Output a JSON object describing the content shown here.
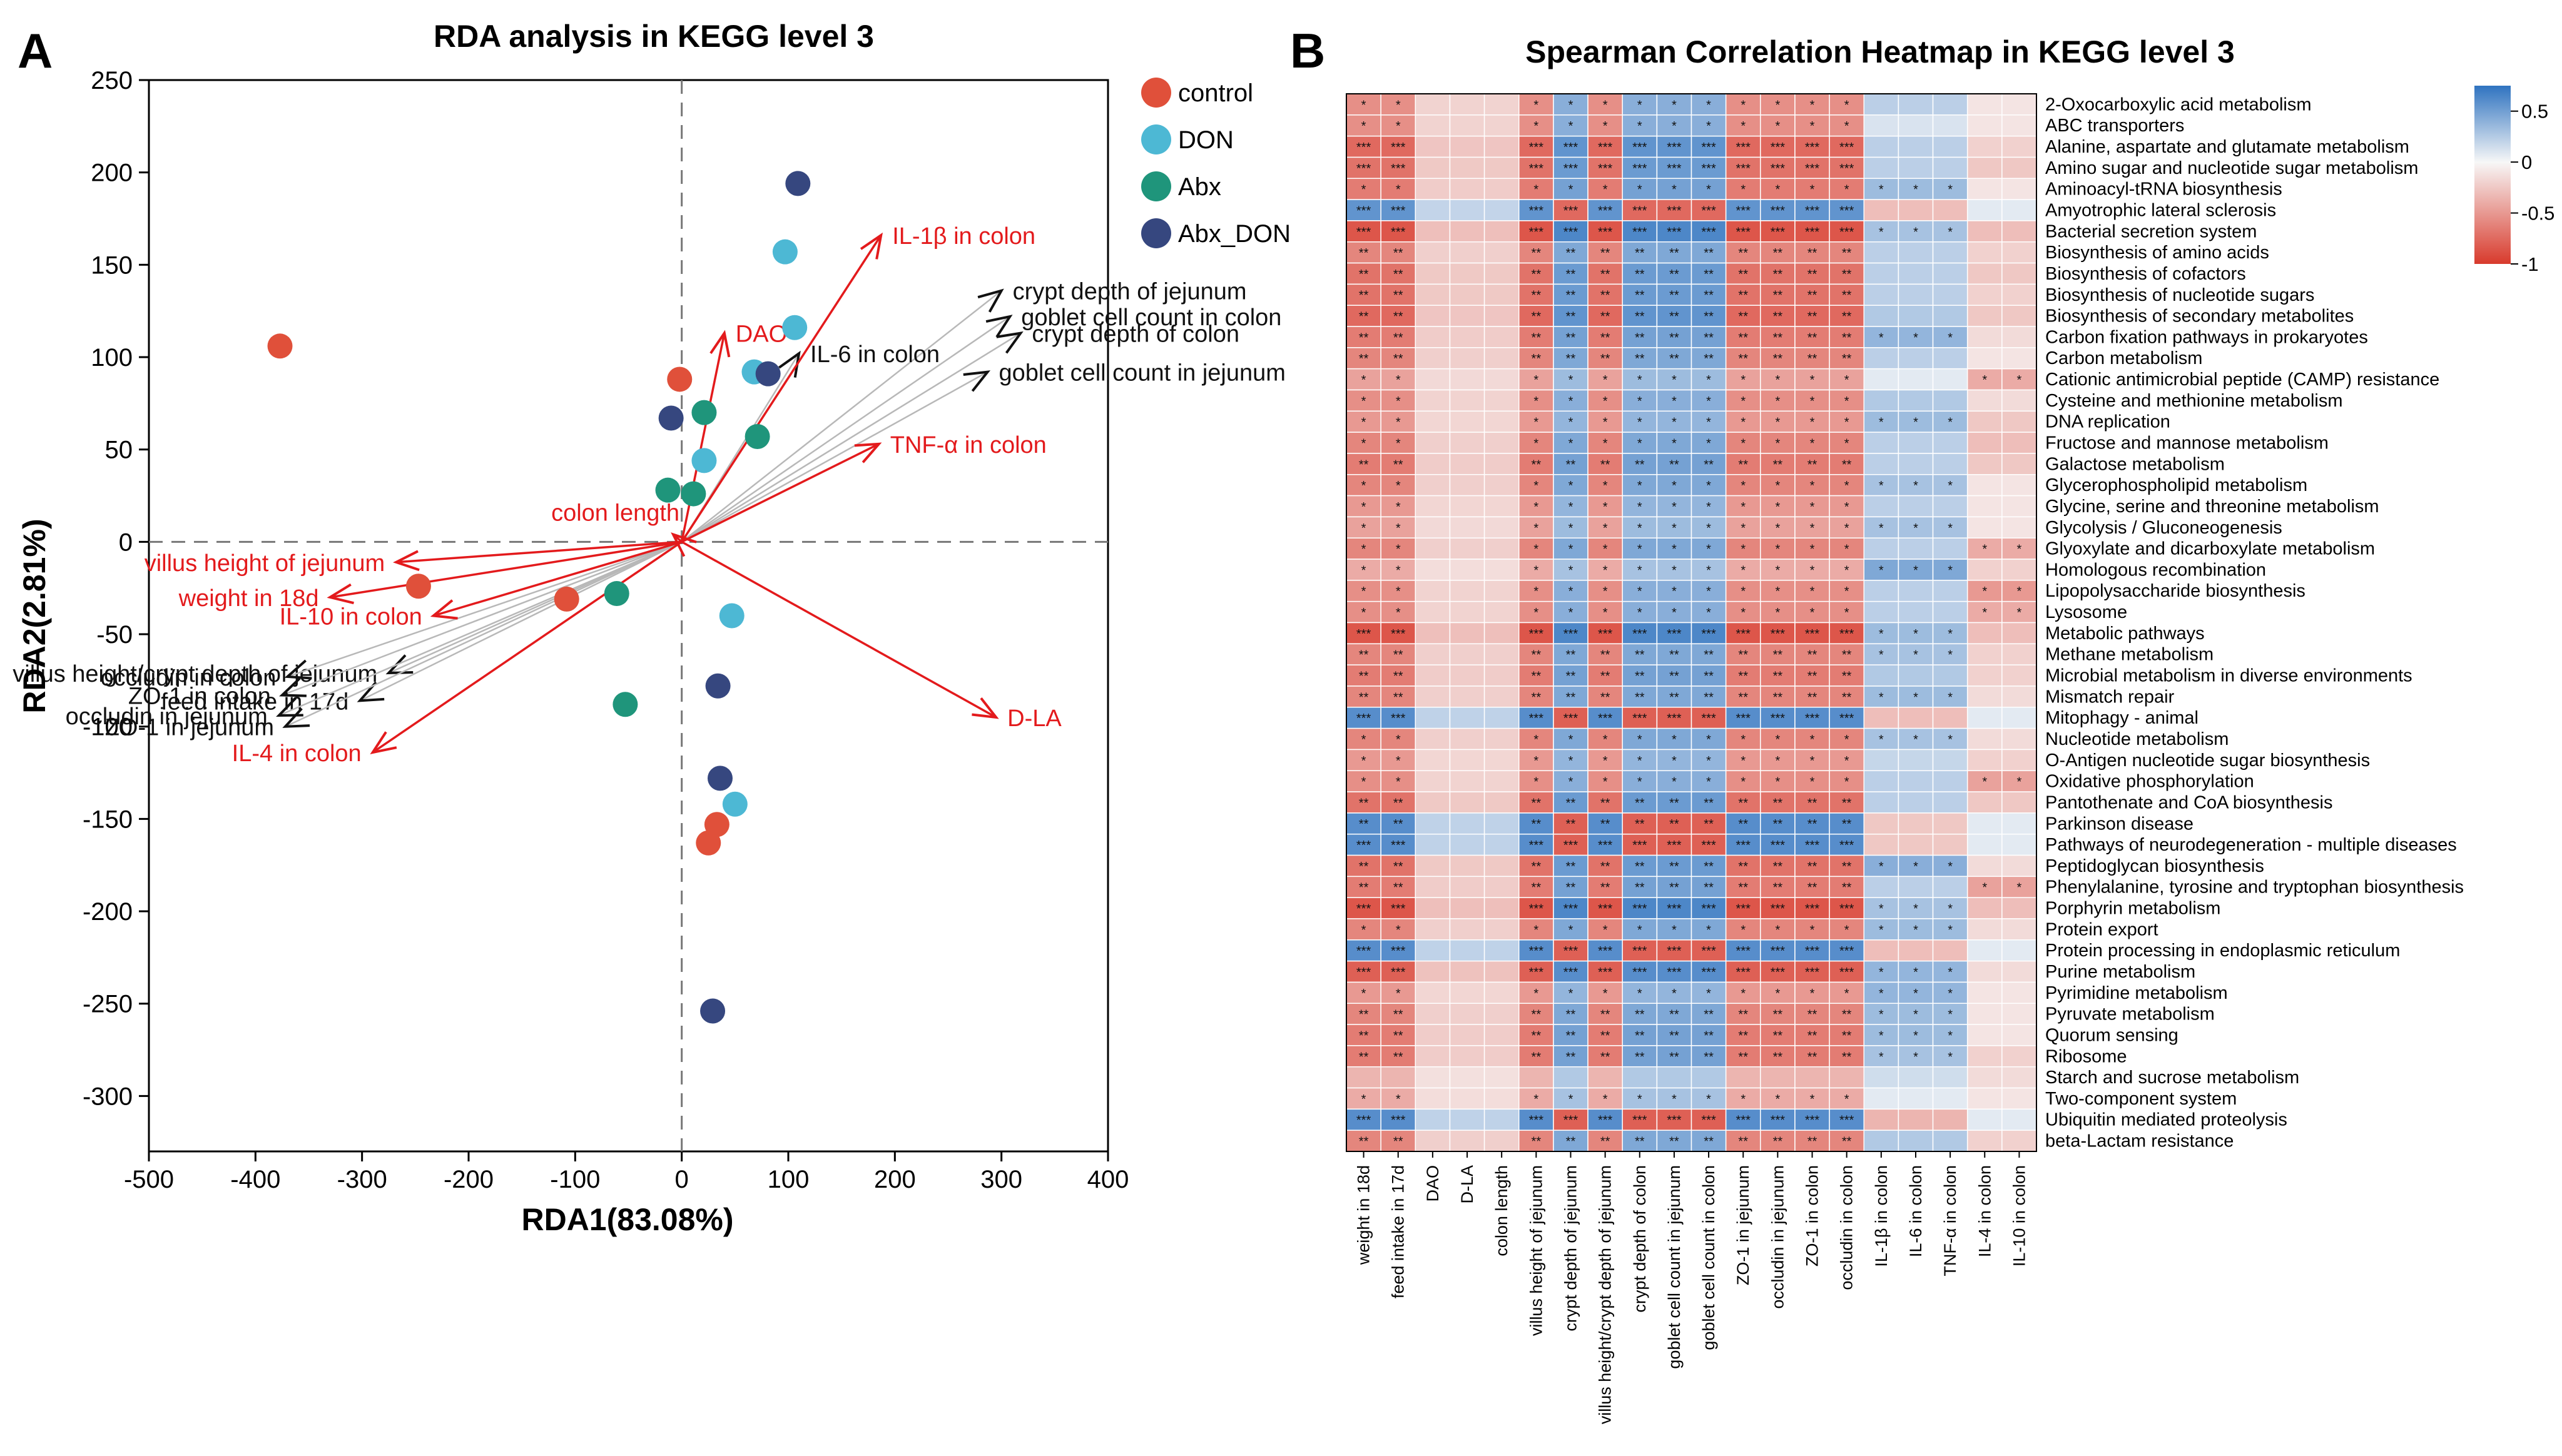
{
  "chart_data": [
    {
      "type": "scatter",
      "panel_label": "A",
      "title": "RDA analysis in KEGG level 3",
      "xlabel": "RDA1(83.08%)",
      "ylabel": "RDA2(2.81%)",
      "xlim": [
        -500,
        400
      ],
      "ylim": [
        -330,
        250
      ],
      "xticks": [
        -500,
        -400,
        -300,
        -200,
        -100,
        0,
        100,
        200,
        300,
        400
      ],
      "yticks": [
        250,
        200,
        150,
        100,
        50,
        0,
        -50,
        -100,
        -150,
        -200,
        -250,
        -300
      ],
      "legend_position": "top-right, outside",
      "series": [
        {
          "name": "control",
          "color": "#e0503a",
          "points": [
            [
              -377,
              106
            ],
            [
              -2,
              88
            ],
            [
              -247,
              -24
            ],
            [
              -108,
              -31
            ],
            [
              25,
              -163
            ],
            [
              33,
              -153
            ]
          ]
        },
        {
          "name": "DON",
          "color": "#4db8d4",
          "points": [
            [
              97,
              157
            ],
            [
              106,
              116
            ],
            [
              68,
              92
            ],
            [
              21,
              44
            ],
            [
              47,
              -40
            ],
            [
              50,
              -142
            ]
          ]
        },
        {
          "name": "Abx",
          "color": "#1f957b",
          "points": [
            [
              21,
              70
            ],
            [
              71,
              57
            ],
            [
              -13,
              28
            ],
            [
              11,
              26
            ],
            [
              -61,
              -28
            ],
            [
              -53,
              -88
            ]
          ]
        },
        {
          "name": "Abx_DON",
          "color": "#36477f",
          "points": [
            [
              109,
              194
            ],
            [
              81,
              91
            ],
            [
              -10,
              67
            ],
            [
              34,
              -78
            ],
            [
              36,
              -128
            ],
            [
              29,
              -254
            ]
          ]
        }
      ],
      "arrows_environment": [
        {
          "label": "IL-1β in colon",
          "color": "#e31a1c",
          "x": 187,
          "y": 166
        },
        {
          "label": "DAO",
          "color": "#e31a1c",
          "x": 40,
          "y": 113
        },
        {
          "label": "TNF-α in colon",
          "color": "#e31a1c",
          "x": 185,
          "y": 53
        },
        {
          "label": "colon length",
          "color": "#e31a1c",
          "x": -8,
          "y": 4
        },
        {
          "label": "villus height of jejunum",
          "color": "#e31a1c",
          "x": -268,
          "y": -11
        },
        {
          "label": "weight in 18d",
          "color": "#e31a1c",
          "x": -330,
          "y": -30
        },
        {
          "label": "IL-10 in colon",
          "color": "#e31a1c",
          "x": -233,
          "y": -40
        },
        {
          "label": "IL-4 in colon",
          "color": "#e31a1c",
          "x": -290,
          "y": -114
        },
        {
          "label": "D-LA",
          "color": "#e31a1c",
          "x": 295,
          "y": -95
        }
      ],
      "arrows_other": [
        {
          "label": "crypt depth of jejunum",
          "color": "#111111",
          "x": 300,
          "y": 136
        },
        {
          "label": "goblet cell count in colon",
          "color": "#111111",
          "x": 308,
          "y": 122
        },
        {
          "label": "crypt depth of colon",
          "color": "#111111",
          "x": 318,
          "y": 113
        },
        {
          "label": "IL-6 in colon",
          "color": "#111111",
          "x": 110,
          "y": 102
        },
        {
          "label": "goblet cell count in jejunum",
          "color": "#111111",
          "x": 287,
          "y": 92
        },
        {
          "label": "villus height/crypt depth of jejunum",
          "color": "#111111",
          "x": -275,
          "y": -71
        },
        {
          "label": "occludin in colon",
          "color": "#111111",
          "x": -370,
          "y": -73
        },
        {
          "label": "ZO-1 in colon",
          "color": "#111111",
          "x": -375,
          "y": -83
        },
        {
          "label": "feed intake in 17d",
          "color": "#111111",
          "x": -302,
          "y": -86
        },
        {
          "label": "occludin in jejunum",
          "color": "#111111",
          "x": -378,
          "y": -94
        },
        {
          "label": "ZO-1 in jejunum",
          "color": "#111111",
          "x": -372,
          "y": -100
        }
      ]
    },
    {
      "type": "heatmap",
      "panel_label": "B",
      "title": "Spearman Correlation Heatmap in KEGG level 3",
      "colorbar": {
        "ticks": [
          "0.5",
          "0",
          "-0.5",
          "-1"
        ],
        "tick_values": [
          0.5,
          0,
          -0.5,
          -1
        ],
        "range": [
          -1,
          0.75
        ],
        "positive_color": "#2f73c0",
        "negative_color": "#d83a2c",
        "mid_color": "#f7f7f7"
      },
      "columns": [
        "weight in 18d",
        "feed intake in 17d",
        "DAO",
        "D-LA",
        "colon length",
        "villus height of jejunum",
        "crypt depth of jejunum",
        "villus height/crypt depth of jejunum",
        "crypt depth of colon",
        "goblet cell count in jejunum",
        "goblet cell count in colon",
        "ZO-1 in jejunum",
        "occludin in jejunum",
        "ZO-1 in colon",
        "occludin in colon",
        "IL-1β in colon",
        "IL-6 in colon",
        "TNF-α in colon",
        "IL-4 in colon",
        "IL-10 in colon"
      ],
      "column_groups": {
        "A": [
          0,
          1,
          5,
          7,
          11,
          12,
          13,
          14
        ],
        "B": [
          6,
          8,
          9,
          10
        ],
        "D": [
          2,
          3,
          4
        ],
        "E": [
          15,
          16,
          17
        ],
        "F": [
          18,
          19
        ]
      },
      "column_group_logic": "A columns carry value a, B columns carry -a; D columns carry a scaled faint value; E and F have per-row values",
      "rows": [
        {
          "name": "2-Oxocarboxylic acid metabolism",
          "a": -0.55,
          "e": 0.3,
          "f": -0.1,
          "sig": "*"
        },
        {
          "name": "ABC transporters",
          "a": -0.55,
          "e": 0.15,
          "f": -0.1,
          "sig": "*"
        },
        {
          "name": "Alanine, aspartate and glutamate metabolism",
          "a": -0.75,
          "e": 0.3,
          "f": -0.2,
          "sig": "***"
        },
        {
          "name": "Amino sugar and nucleotide sugar metabolism",
          "a": -0.7,
          "e": 0.3,
          "f": -0.25,
          "sig": "***"
        },
        {
          "name": "Aminoacyl-tRNA biosynthesis",
          "a": -0.65,
          "e": 0.45,
          "f": -0.1,
          "sig": "*"
        },
        {
          "name": "Amyotrophic lateral sclerosis",
          "a": 0.75,
          "e": -0.3,
          "f": 0.1,
          "sig": "***"
        },
        {
          "name": "Bacterial secretion system",
          "a": -0.85,
          "e": 0.4,
          "f": -0.3,
          "sig": "***"
        },
        {
          "name": "Biosynthesis of amino acids",
          "a": -0.6,
          "e": 0.3,
          "f": -0.2,
          "sig": "**"
        },
        {
          "name": "Biosynthesis of cofactors",
          "a": -0.7,
          "e": 0.3,
          "f": -0.25,
          "sig": "**"
        },
        {
          "name": "Biosynthesis of nucleotide sugars",
          "a": -0.7,
          "e": 0.3,
          "f": -0.2,
          "sig": "**"
        },
        {
          "name": "Biosynthesis of secondary metabolites",
          "a": -0.75,
          "e": 0.35,
          "f": -0.25,
          "sig": "**"
        },
        {
          "name": "Carbon fixation pathways in prokaryotes",
          "a": -0.65,
          "e": 0.5,
          "f": -0.15,
          "sig": "**"
        },
        {
          "name": "Carbon metabolism",
          "a": -0.6,
          "e": 0.3,
          "f": -0.1,
          "sig": "**"
        },
        {
          "name": "Cationic antimicrobial peptide (CAMP) resistance",
          "a": -0.45,
          "e": 0.1,
          "f": -0.4,
          "sig": "*"
        },
        {
          "name": "Cysteine and methionine metabolism",
          "a": -0.55,
          "e": 0.35,
          "f": -0.15,
          "sig": "*"
        },
        {
          "name": "DNA replication",
          "a": -0.5,
          "e": 0.45,
          "f": -0.25,
          "sig": "*"
        },
        {
          "name": "Fructose and mannose metabolism",
          "a": -0.6,
          "e": 0.3,
          "f": -0.3,
          "sig": "*"
        },
        {
          "name": "Galactose metabolism",
          "a": -0.65,
          "e": 0.3,
          "f": -0.25,
          "sig": "**"
        },
        {
          "name": "Glycerophospholipid metabolism",
          "a": -0.6,
          "e": 0.4,
          "f": -0.1,
          "sig": "*"
        },
        {
          "name": "Glycine, serine and threonine metabolism",
          "a": -0.5,
          "e": 0.3,
          "f": -0.1,
          "sig": "*"
        },
        {
          "name": "Glycolysis / Gluconeogenesis",
          "a": -0.45,
          "e": 0.4,
          "f": -0.1,
          "sig": "*"
        },
        {
          "name": "Glyoxylate and dicarboxylate metabolism",
          "a": -0.6,
          "e": 0.3,
          "f": -0.4,
          "sig": "*"
        },
        {
          "name": "Homologous recombination",
          "a": -0.4,
          "e": 0.6,
          "f": -0.2,
          "sig": "*"
        },
        {
          "name": "Lipopolysaccharide biosynthesis",
          "a": -0.55,
          "e": 0.3,
          "f": -0.5,
          "sig": "*"
        },
        {
          "name": "Lysosome",
          "a": -0.55,
          "e": 0.3,
          "f": -0.4,
          "sig": "*"
        },
        {
          "name": "Metabolic pathways",
          "a": -0.85,
          "e": 0.45,
          "f": -0.3,
          "sig": "***"
        },
        {
          "name": "Methane metabolism",
          "a": -0.6,
          "e": 0.4,
          "f": -0.2,
          "sig": "**"
        },
        {
          "name": "Microbial metabolism in diverse environments",
          "a": -0.65,
          "e": 0.35,
          "f": -0.2,
          "sig": "**"
        },
        {
          "name": "Mismatch repair",
          "a": -0.6,
          "e": 0.45,
          "f": -0.15,
          "sig": "**"
        },
        {
          "name": "Mitophagy - animal",
          "a": 0.8,
          "e": -0.3,
          "f": 0.1,
          "sig": "***"
        },
        {
          "name": "Nucleotide metabolism",
          "a": -0.6,
          "e": 0.4,
          "f": -0.15,
          "sig": "*"
        },
        {
          "name": "O-Antigen nucleotide sugar biosynthesis",
          "a": -0.5,
          "e": 0.25,
          "f": -0.2,
          "sig": "*"
        },
        {
          "name": "Oxidative phosphorylation",
          "a": -0.55,
          "e": 0.3,
          "f": -0.45,
          "sig": "*"
        },
        {
          "name": "Pantothenate and CoA biosynthesis",
          "a": -0.7,
          "e": 0.3,
          "f": -0.25,
          "sig": "**"
        },
        {
          "name": "Parkinson disease",
          "a": 0.8,
          "e": -0.25,
          "f": 0.1,
          "sig": "**"
        },
        {
          "name": "Pathways of neurodegeneration - multiple diseases",
          "a": 0.8,
          "e": -0.25,
          "f": 0.1,
          "sig": "***"
        },
        {
          "name": "Peptidoglycan biosynthesis",
          "a": -0.7,
          "e": 0.55,
          "f": -0.15,
          "sig": "**"
        },
        {
          "name": "Phenylalanine, tyrosine and tryptophan biosynthesis",
          "a": -0.65,
          "e": 0.3,
          "f": -0.45,
          "sig": "**"
        },
        {
          "name": "Porphyrin metabolism",
          "a": -0.85,
          "e": 0.4,
          "f": -0.3,
          "sig": "***"
        },
        {
          "name": "Protein export",
          "a": -0.6,
          "e": 0.45,
          "f": -0.15,
          "sig": "*"
        },
        {
          "name": "Protein processing in endoplasmic reticulum",
          "a": 0.8,
          "e": -0.3,
          "f": 0.1,
          "sig": "***"
        },
        {
          "name": "Purine metabolism",
          "a": -0.8,
          "e": 0.5,
          "f": -0.15,
          "sig": "***"
        },
        {
          "name": "Pyrimidine metabolism",
          "a": -0.5,
          "e": 0.5,
          "f": -0.1,
          "sig": "*"
        },
        {
          "name": "Pyruvate metabolism",
          "a": -0.6,
          "e": 0.45,
          "f": -0.1,
          "sig": "**"
        },
        {
          "name": "Quorum sensing",
          "a": -0.65,
          "e": 0.45,
          "f": -0.1,
          "sig": "**"
        },
        {
          "name": "Ribosome",
          "a": -0.65,
          "e": 0.4,
          "f": -0.2,
          "sig": "**"
        },
        {
          "name": "Starch and sucrose metabolism",
          "a": -0.35,
          "e": 0.2,
          "f": -0.15,
          "sig": ""
        },
        {
          "name": "Two-component system",
          "a": -0.4,
          "e": 0.1,
          "f": -0.1,
          "sig": "*"
        },
        {
          "name": "Ubiquitin mediated proteolysis",
          "a": 0.8,
          "e": -0.35,
          "f": 0.1,
          "sig": "***"
        },
        {
          "name": "beta-Lactam resistance",
          "a": -0.6,
          "e": 0.35,
          "f": -0.2,
          "sig": "**"
        }
      ]
    }
  ]
}
